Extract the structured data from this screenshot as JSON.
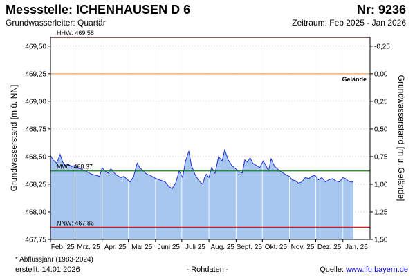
{
  "header": {
    "title": "Messstelle: ICHENHAUSEN D 6",
    "number": "Nr: 9236",
    "aquifer": "Grundwasserleiter: Quartär",
    "period": "Zeitraum: Feb 2025 - Jan 2026"
  },
  "footer": {
    "footnote": "* Abflussjahr (1983-2024)",
    "created": "erstellt:  14.01.2026",
    "raw_data": "- Rohdaten -",
    "source_prefix": "Quelle: ",
    "source_link": "www.lfu.bayern.de"
  },
  "colors": {
    "fill": "#a7c7ef",
    "line": "#1f2fd0",
    "hhw": "#e01919",
    "nnw": "#e01919",
    "mw": "#0a8a0a",
    "gelaende": "#f08a3a",
    "grid": "#c8c8c8"
  },
  "chart_data": {
    "type": "area",
    "xlabel": "",
    "ylabel": "Grundwasserstand [m ü. NN]",
    "ylabel_right": "Grundwasserstand [m u. Gelände]",
    "ylim": [
      467.75,
      469.58
    ],
    "xlim": [
      "2025-02-01",
      "2026-01-31"
    ],
    "yticks": [
      467.75,
      468.0,
      468.25,
      468.5,
      468.75,
      469.0,
      469.25,
      469.5
    ],
    "ytick_labels": [
      "467,75",
      "468,00",
      "468,25",
      "468,50",
      "468,75",
      "469,00",
      "469,25",
      "469,50"
    ],
    "yticks_right": [
      1.5,
      1.25,
      1.0,
      0.75,
      0.5,
      0.25,
      0.0,
      -0.25
    ],
    "ytick_labels_right": [
      "1,50",
      "1,25",
      "1,00",
      "0,75",
      "0,50",
      "0,25",
      "0,00",
      "-0,25"
    ],
    "ground_level": 469.25,
    "xtick_labels": [
      "Feb. 25",
      "Mrz. 25",
      "Apr. 25",
      "Mai 25",
      "Juni 25",
      "Juli 25",
      "Aug. 25",
      "Sept. 25",
      "Okt. 25",
      "Nov. 25",
      "Dez. 25",
      "Jan. 26"
    ],
    "month_starts": [
      "2025-02-01",
      "2025-03-01",
      "2025-04-01",
      "2025-05-01",
      "2025-06-01",
      "2025-07-01",
      "2025-08-01",
      "2025-09-01",
      "2025-10-01",
      "2025-11-01",
      "2025-12-01",
      "2026-01-01"
    ],
    "grid": true,
    "reference_lines": [
      {
        "key": "hhw",
        "label": "HHW: 469.58",
        "value": 469.58
      },
      {
        "key": "mw",
        "label": "MW*: 468.37",
        "value": 468.37
      },
      {
        "key": "nnw",
        "label": "NNW: 467.86",
        "value": 467.86
      }
    ],
    "ground_label": "Gelände",
    "x": [
      "2025-02-01",
      "2025-02-04",
      "2025-02-08",
      "2025-02-12",
      "2025-02-15",
      "2025-02-18",
      "2025-02-21",
      "2025-02-25",
      "2025-03-01",
      "2025-03-05",
      "2025-03-10",
      "2025-03-15",
      "2025-03-20",
      "2025-03-25",
      "2025-03-29",
      "2025-04-01",
      "2025-04-04",
      "2025-04-08",
      "2025-04-11",
      "2025-04-15",
      "2025-04-18",
      "2025-04-22",
      "2025-04-26",
      "2025-04-30",
      "2025-05-03",
      "2025-05-07",
      "2025-05-11",
      "2025-05-14",
      "2025-05-18",
      "2025-05-22",
      "2025-05-26",
      "2025-05-30",
      "2025-06-02",
      "2025-06-05",
      "2025-06-09",
      "2025-06-12",
      "2025-06-16",
      "2025-06-20",
      "2025-06-24",
      "2025-06-28",
      "2025-07-02",
      "2025-07-05",
      "2025-07-09",
      "2025-07-12",
      "2025-07-14",
      "2025-07-16",
      "2025-07-19",
      "2025-07-22",
      "2025-07-25",
      "2025-07-27",
      "2025-07-29",
      "2025-08-01",
      "2025-08-04",
      "2025-08-08",
      "2025-08-12",
      "2025-08-16",
      "2025-08-19",
      "2025-08-23",
      "2025-08-27",
      "2025-08-30",
      "2025-09-02",
      "2025-09-05",
      "2025-09-08",
      "2025-09-11",
      "2025-09-14",
      "2025-09-17",
      "2025-09-20",
      "2025-09-24",
      "2025-09-28",
      "2025-10-02",
      "2025-10-05",
      "2025-10-08",
      "2025-10-11",
      "2025-10-15",
      "2025-10-18",
      "2025-10-21",
      "2025-10-25",
      "2025-10-29",
      "2025-11-01",
      "2025-11-04",
      "2025-11-08",
      "2025-11-11",
      "2025-11-15",
      "2025-11-19",
      "2025-11-23",
      "2025-11-26",
      "2025-11-30",
      "2025-12-04",
      "2025-12-08",
      "2025-12-12",
      "2025-12-16",
      "2025-12-20",
      "2025-12-24",
      "2025-12-28",
      "2026-01-01",
      "2026-01-04",
      "2026-01-07",
      "2026-01-10",
      "2026-01-13"
    ],
    "values": [
      468.51,
      468.47,
      468.44,
      468.52,
      468.45,
      468.42,
      468.43,
      468.41,
      468.42,
      468.4,
      468.38,
      468.36,
      468.34,
      468.33,
      468.32,
      468.4,
      468.37,
      468.35,
      468.39,
      468.35,
      468.33,
      468.31,
      468.32,
      468.29,
      468.27,
      468.32,
      468.44,
      468.4,
      468.37,
      468.34,
      468.33,
      468.31,
      468.3,
      468.29,
      468.28,
      468.27,
      468.23,
      468.21,
      468.26,
      468.37,
      468.31,
      468.45,
      468.55,
      468.42,
      468.38,
      468.34,
      468.3,
      468.27,
      468.25,
      468.31,
      468.34,
      468.31,
      468.4,
      468.35,
      468.5,
      468.46,
      468.56,
      468.47,
      468.42,
      468.4,
      468.38,
      468.36,
      468.35,
      468.47,
      468.45,
      468.49,
      468.44,
      468.42,
      468.4,
      468.46,
      468.42,
      468.37,
      468.48,
      468.41,
      468.39,
      468.37,
      468.35,
      468.33,
      468.32,
      468.29,
      468.28,
      468.26,
      468.27,
      468.31,
      468.3,
      468.32,
      468.33,
      468.29,
      468.31,
      468.27,
      468.29,
      468.3,
      468.28,
      468.27,
      468.31,
      468.3,
      468.28,
      468.27,
      468.27
    ]
  }
}
